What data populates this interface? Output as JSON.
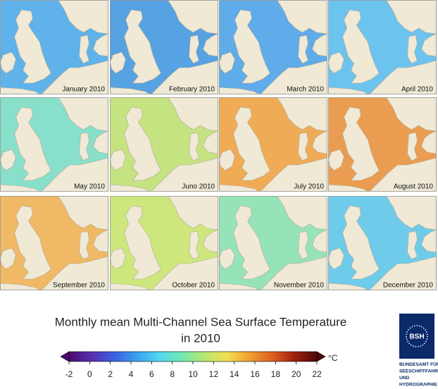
{
  "panels": [
    {
      "label": "January 2010",
      "color": "#4aa8e8"
    },
    {
      "label": "February 2010",
      "color": "#3f96e0"
    },
    {
      "label": "March 2010",
      "color": "#4aa0e6"
    },
    {
      "label": "April 2010",
      "color": "#58bbec"
    },
    {
      "label": "May 2010",
      "color": "#78dcc4"
    },
    {
      "label": "Juno 2010",
      "color": "#bfe070"
    },
    {
      "label": "July 2010",
      "color": "#eea040"
    },
    {
      "label": "August 2010",
      "color": "#e89038"
    },
    {
      "label": "September 2010",
      "color": "#eeb050"
    },
    {
      "label": "October 2010",
      "color": "#c6e46c"
    },
    {
      "label": "November 2010",
      "color": "#88e0b0"
    },
    {
      "label": "December 2010",
      "color": "#5cc4e8"
    }
  ],
  "title": [
    "Monthly mean Multi-Channel Sea Surface Temperature",
    "in 2010"
  ],
  "colorbar": {
    "range": [
      -2,
      22
    ],
    "ticks": [
      -2,
      0,
      2,
      4,
      6,
      8,
      10,
      12,
      14,
      16,
      18,
      20,
      22
    ],
    "unit": "°C",
    "colors": [
      "#4a0a6e",
      "#5a2fb0",
      "#3a60e0",
      "#3aa0f0",
      "#50d8f0",
      "#70e8b0",
      "#b8e870",
      "#f0e050",
      "#f0a030",
      "#e06020",
      "#a02010",
      "#500808"
    ]
  },
  "logo": {
    "mark": "BSH",
    "lines": [
      "BUNDESAMT FÜR",
      "SEESCHIFFFAHRT",
      "UND",
      "HYDROGRAPHIE"
    ]
  }
}
